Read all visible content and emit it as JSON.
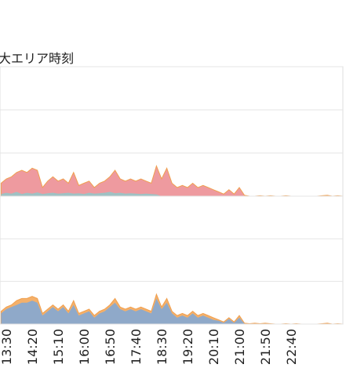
{
  "chart_data": {
    "type": "area",
    "title": "大エリア時刻",
    "categories": [
      null,
      "13:30",
      null,
      null,
      null,
      null,
      "14:20",
      null,
      null,
      null,
      null,
      "15:10",
      null,
      null,
      null,
      null,
      "16:00",
      null,
      null,
      null,
      null,
      "16:50",
      null,
      null,
      null,
      null,
      "17:40",
      null,
      null,
      null,
      null,
      "18:30",
      null,
      null,
      null,
      null,
      "19:20",
      null,
      null,
      null,
      null,
      "20:10",
      null,
      null,
      null,
      null,
      "21:00",
      null,
      null,
      null,
      null,
      "21:50",
      null,
      null,
      null,
      null,
      "22:40",
      null,
      null,
      null,
      null,
      null,
      null,
      null,
      null,
      null,
      null
    ],
    "grid": true,
    "panels": [
      {
        "ylim": [
          0,
          3
        ],
        "yticks": [
          0,
          1,
          2,
          3
        ],
        "series": [
          {
            "color": "#ee9a9f",
            "values": [
              0.3,
              0.4,
              0.45,
              0.55,
              0.6,
              0.55,
              0.65,
              0.6,
              0.2,
              0.35,
              0.45,
              0.35,
              0.4,
              0.3,
              0.55,
              0.25,
              0.3,
              0.35,
              0.2,
              0.3,
              0.35,
              0.45,
              0.6,
              0.4,
              0.35,
              0.4,
              0.35,
              0.4,
              0.35,
              0.3,
              0.7,
              0.4,
              0.65,
              0.3,
              0.2,
              0.25,
              0.2,
              0.3,
              0.2,
              0.25,
              0.2,
              0.15,
              0.1,
              0.05,
              0.15,
              0.05,
              0.2,
              0.02,
              0,
              0,
              0.01,
              0,
              0.01,
              0,
              0,
              0.01,
              0,
              0,
              0,
              0,
              0,
              0,
              0.01,
              0.02,
              0,
              0.01,
              0
            ]
          },
          {
            "color": "#9fc1c3",
            "values": [
              0.05,
              0.08,
              0.06,
              0.1,
              0.05,
              0.08,
              0.06,
              0.09,
              0.05,
              0.07,
              0.08,
              0.06,
              0.07,
              0.08,
              0.06,
              0.07,
              0.05,
              0.08,
              0.06,
              0.07,
              0.08,
              0.1,
              0.07,
              0.08,
              0.06,
              0.07,
              0.06,
              0.05,
              0.06,
              0.05,
              0.04,
              0,
              0,
              0,
              0,
              0,
              0,
              0,
              0,
              0,
              0,
              0,
              0,
              0,
              0,
              0,
              0,
              0,
              0,
              0,
              0,
              0,
              0,
              0,
              0,
              0,
              0,
              0,
              0,
              0,
              0,
              0,
              0,
              0,
              0,
              0,
              0
            ]
          }
        ]
      },
      {
        "ylim": [
          0,
          3
        ],
        "yticks": [
          0,
          1,
          2,
          3
        ],
        "series": [
          {
            "color": "#f4b06a",
            "values": [
              0.3,
              0.4,
              0.45,
              0.55,
              0.6,
              0.6,
              0.65,
              0.6,
              0.25,
              0.35,
              0.45,
              0.35,
              0.45,
              0.3,
              0.55,
              0.25,
              0.3,
              0.35,
              0.2,
              0.3,
              0.35,
              0.45,
              0.6,
              0.4,
              0.35,
              0.4,
              0.35,
              0.4,
              0.35,
              0.3,
              0.7,
              0.4,
              0.6,
              0.3,
              0.2,
              0.25,
              0.2,
              0.3,
              0.2,
              0.25,
              0.2,
              0.15,
              0.1,
              0.05,
              0.15,
              0.05,
              0.2,
              0.02,
              0.01,
              0.02,
              0.01,
              0.02,
              0.01,
              0,
              0,
              0.01,
              0,
              0.01,
              0,
              0,
              0,
              0,
              0.01,
              0.02,
              0,
              0.01,
              0
            ]
          },
          {
            "color": "#8fa9c9",
            "values": [
              0.25,
              0.35,
              0.4,
              0.45,
              0.5,
              0.5,
              0.55,
              0.5,
              0.2,
              0.3,
              0.4,
              0.3,
              0.4,
              0.25,
              0.45,
              0.2,
              0.25,
              0.3,
              0.15,
              0.25,
              0.3,
              0.4,
              0.5,
              0.35,
              0.3,
              0.35,
              0.3,
              0.35,
              0.3,
              0.25,
              0.6,
              0.35,
              0.5,
              0.25,
              0.15,
              0.2,
              0.15,
              0.25,
              0.15,
              0.2,
              0.15,
              0.1,
              0.08,
              0.03,
              0.12,
              0.03,
              0.15,
              0.01,
              0,
              0,
              0,
              0,
              0,
              0,
              0,
              0,
              0,
              0,
              0,
              0,
              0,
              0,
              0,
              0,
              0,
              0,
              0
            ]
          }
        ]
      }
    ]
  }
}
